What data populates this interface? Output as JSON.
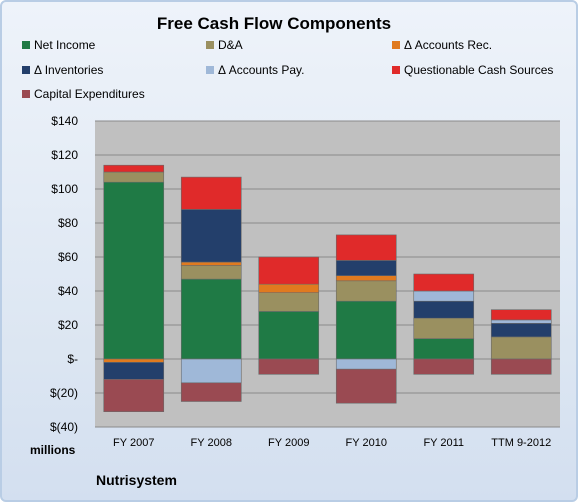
{
  "title": "Free Cash Flow Components",
  "company": "Nutrisystem",
  "units_label": "millions",
  "legend_items": [
    {
      "name": "Net Income",
      "color": "#1f7a45"
    },
    {
      "name": "D&A",
      "color": "#9a9060"
    },
    {
      "name": "Δ Accounts Rec.",
      "color": "#e07a1f"
    },
    {
      "name": "Δ Inventories",
      "color": "#233f6b"
    },
    {
      "name": "Δ Accounts Pay.",
      "color": "#9fb8d8"
    },
    {
      "name": "Questionable Cash Sources",
      "color": "#e02a2a"
    },
    {
      "name": "Capital Expenditures",
      "color": "#9a4a52"
    }
  ],
  "chart_data": {
    "type": "bar",
    "stacked": true,
    "title": "Free Cash Flow Components",
    "ylabel": "millions",
    "ylim": [
      -40,
      140
    ],
    "yticks": [
      {
        "value": 140,
        "label": "$140"
      },
      {
        "value": 120,
        "label": "$120"
      },
      {
        "value": 100,
        "label": "$100"
      },
      {
        "value": 80,
        "label": "$80"
      },
      {
        "value": 60,
        "label": "$60"
      },
      {
        "value": 40,
        "label": "$40"
      },
      {
        "value": 20,
        "label": "$20"
      },
      {
        "value": 0,
        "label": "$-"
      },
      {
        "value": -20,
        "label": "$(20)"
      },
      {
        "value": -40,
        "label": "$(40)"
      }
    ],
    "grid": true,
    "legend_position": "top",
    "categories": [
      "FY 2007",
      "FY 2008",
      "FY 2009",
      "FY 2010",
      "FY 2011",
      "TTM 9-2012"
    ],
    "series": [
      {
        "name": "Net Income",
        "color": "#1f7a45",
        "values": [
          104,
          47,
          28,
          34,
          12,
          0
        ]
      },
      {
        "name": "D&A",
        "color": "#9a9060",
        "values": [
          6,
          8,
          11,
          12,
          12,
          13
        ]
      },
      {
        "name": "Δ Accounts Rec.",
        "color": "#e07a1f",
        "values": [
          -2,
          2,
          5,
          3,
          0,
          0
        ]
      },
      {
        "name": "Δ Inventories",
        "color": "#233f6b",
        "values": [
          -10,
          31,
          0,
          9,
          10,
          8
        ]
      },
      {
        "name": "Δ Accounts Pay.",
        "color": "#9fb8d8",
        "values": [
          0,
          -14,
          0,
          -6,
          6,
          2
        ]
      },
      {
        "name": "Questionable Cash Sources",
        "color": "#e02a2a",
        "values": [
          4,
          19,
          16,
          15,
          10,
          6
        ]
      },
      {
        "name": "Capital Expenditures",
        "color": "#9a4a52",
        "values": [
          -19,
          -11,
          -9,
          -20,
          -9,
          -9
        ]
      }
    ]
  }
}
